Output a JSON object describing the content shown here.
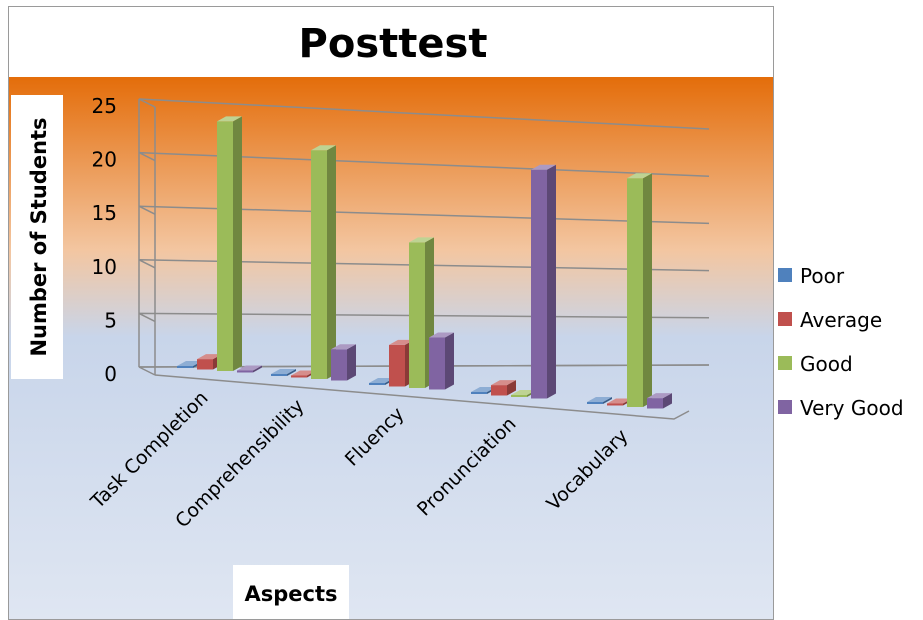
{
  "chart_data": {
    "type": "bar",
    "title": "Posttest",
    "xlabel": "Aspects",
    "ylabel": "Number of Students",
    "categories": [
      "Task Completion",
      "Comprehensibility",
      "Fluency",
      "Pronunciation",
      "Vocabulary"
    ],
    "ylim": [
      0,
      25
    ],
    "yticks": [
      0,
      5,
      10,
      15,
      20,
      25
    ],
    "grid": true,
    "legend_position": "right",
    "series": [
      {
        "name": "Poor",
        "values": [
          0,
          0,
          0,
          0,
          0
        ],
        "color": "#4f81bd"
      },
      {
        "name": "Average",
        "values": [
          1,
          0,
          4,
          1,
          0
        ],
        "color": "#c0504d"
      },
      {
        "name": "Good",
        "values": [
          24,
          22,
          14,
          0,
          22
        ],
        "color": "#9bbb59"
      },
      {
        "name": "Very Good",
        "values": [
          0,
          3,
          5,
          22,
          1
        ],
        "color": "#8064a2"
      }
    ]
  }
}
